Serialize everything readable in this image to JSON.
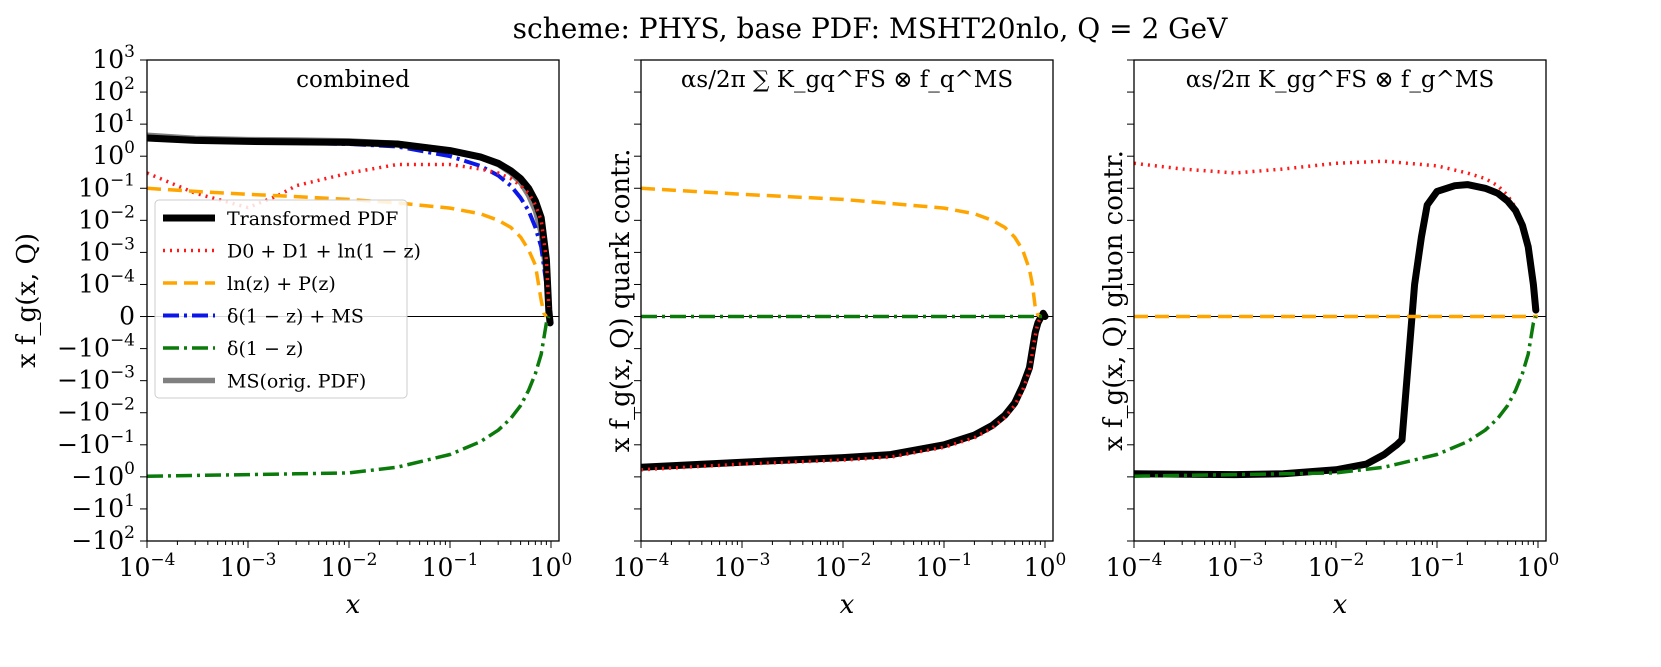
{
  "figure": {
    "title": "scheme: PHYS, base PDF: MSHT20nlo, Q = 2 GeV"
  },
  "styles": {
    "transformed": {
      "color": "#000000",
      "width": 7,
      "dash": ""
    },
    "d0d1": {
      "color": "#ff1a1a",
      "width": 3.5,
      "dash": "2,5"
    },
    "lnzP": {
      "color": "#ffa500",
      "width": 3.5,
      "dash": "14,7"
    },
    "deltaMS": {
      "color": "#0b16e8",
      "width": 4,
      "dash": "16,5,3,5"
    },
    "delta": {
      "color": "#0a7a0a",
      "width": 3.5,
      "dash": "16,5,3,5"
    },
    "orig": {
      "color": "#808080",
      "width": 5.5,
      "dash": ""
    },
    "zero_line": "#000000"
  },
  "chart_data": [
    {
      "type": "line",
      "panel_title": "combined",
      "xlabel": "x",
      "ylabel": "x f_g(x, Q)",
      "xscale": "log",
      "yscale": "symlog",
      "xlim": [
        0.0001,
        1.2
      ],
      "ylim": [
        -100,
        1000
      ],
      "xticks": [
        0.0001,
        0.001,
        0.01,
        0.1,
        1
      ],
      "xtick_labels": [
        "10^-4",
        "10^-3",
        "10^-2",
        "10^-1",
        "10^0"
      ],
      "yticks": [
        1000,
        100,
        10,
        1,
        0.1,
        0.01,
        0.001,
        0.0001,
        0,
        -0.0001,
        -0.001,
        -0.01,
        -0.1,
        -1,
        -10,
        -100
      ],
      "ytick_labels": [
        "10^3",
        "10^2",
        "10^1",
        "10^0",
        "10^-1",
        "10^-2",
        "10^-3",
        "10^-4",
        "0",
        "-10^-4",
        "-10^-3",
        "-10^-2",
        "-10^-1",
        "-10^0",
        "-10^1",
        "-10^2"
      ],
      "legend": {
        "placement": "center-left",
        "entries": [
          {
            "key": "transformed",
            "label": "Transformed PDF"
          },
          {
            "key": "d0d1",
            "label": "D0 + D1 + ln(1 − z)"
          },
          {
            "key": "lnzP",
            "label": "ln(z) + P(z)"
          },
          {
            "key": "deltaMS",
            "label": "δ(1 − z) + MS"
          },
          {
            "key": "delta",
            "label": "δ(1 − z)"
          },
          {
            "key": "orig",
            "label": "MS(orig. PDF)"
          }
        ]
      },
      "series": [
        {
          "key": "orig",
          "x": [
            0.0001,
            0.0003,
            0.001,
            0.003,
            0.01,
            0.03,
            0.1,
            0.2,
            0.3,
            0.4,
            0.5,
            0.6,
            0.7,
            0.8,
            0.9,
            0.95
          ],
          "y": [
            4.5,
            3.6,
            3.3,
            3.2,
            3.0,
            2.5,
            1.5,
            0.9,
            0.55,
            0.3,
            0.15,
            0.06,
            0.02,
            0.004,
            0.0002,
            1e-05
          ]
        },
        {
          "key": "deltaMS",
          "x": [
            0.0001,
            0.0003,
            0.001,
            0.003,
            0.01,
            0.03,
            0.1,
            0.2,
            0.3,
            0.4,
            0.5,
            0.6,
            0.7,
            0.8,
            0.9,
            0.95
          ],
          "y": [
            3.4,
            2.9,
            2.7,
            2.6,
            2.4,
            2.0,
            1.0,
            0.5,
            0.25,
            0.12,
            0.05,
            0.02,
            0.006,
            0.0015,
            0.0001,
            1e-05
          ]
        },
        {
          "key": "transformed",
          "x": [
            0.0001,
            0.0003,
            0.001,
            0.003,
            0.01,
            0.03,
            0.1,
            0.2,
            0.3,
            0.4,
            0.5,
            0.6,
            0.7,
            0.8,
            0.9,
            0.95,
            0.98
          ],
          "y": [
            3.7,
            3.1,
            2.9,
            2.8,
            2.7,
            2.4,
            1.5,
            0.95,
            0.6,
            0.35,
            0.2,
            0.1,
            0.04,
            0.012,
            0.0006,
            2e-05,
            -2e-05
          ]
        },
        {
          "key": "d0d1",
          "x": [
            0.0001,
            0.0003,
            0.001,
            0.002,
            0.003,
            0.01,
            0.03,
            0.1,
            0.2,
            0.3,
            0.4,
            0.5,
            0.6,
            0.7,
            0.8,
            0.9,
            0.95
          ],
          "y": [
            0.3,
            0.07,
            0.025,
            0.06,
            0.12,
            0.3,
            0.55,
            0.55,
            0.4,
            0.3,
            0.2,
            0.12,
            0.07,
            0.03,
            0.01,
            0.0006,
            3e-05
          ]
        },
        {
          "key": "lnzP",
          "x": [
            0.0001,
            0.0003,
            0.001,
            0.003,
            0.01,
            0.03,
            0.1,
            0.2,
            0.3,
            0.4,
            0.5,
            0.6,
            0.7,
            0.8,
            0.85,
            0.9
          ],
          "y": [
            0.1,
            0.08,
            0.065,
            0.055,
            0.045,
            0.035,
            0.024,
            0.016,
            0.01,
            0.006,
            0.003,
            0.0012,
            0.0004,
            5e-05,
            1e-05,
            0
          ]
        },
        {
          "key": "delta",
          "x": [
            0.0001,
            0.001,
            0.003,
            0.01,
            0.03,
            0.1,
            0.2,
            0.3,
            0.4,
            0.5,
            0.6,
            0.7,
            0.8,
            0.9,
            0.95
          ],
          "y": [
            -0.95,
            -0.85,
            -0.8,
            -0.75,
            -0.5,
            -0.2,
            -0.08,
            -0.035,
            -0.015,
            -0.006,
            -0.002,
            -0.0006,
            -0.00015,
            -2e-05,
            0
          ]
        }
      ]
    },
    {
      "type": "line",
      "panel_title": "αs/2π ∑ K_gq^FS ⊗ f_q^MS",
      "xlabel": "x",
      "ylabel": "x f_g(x, Q)  quark contr.",
      "xscale": "log",
      "yscale": "symlog",
      "xlim": [
        0.0001,
        1.2
      ],
      "ylim": [
        -100,
        1000
      ],
      "xticks": [
        0.0001,
        0.001,
        0.01,
        0.1,
        1
      ],
      "xtick_labels": [
        "10^-4",
        "10^-3",
        "10^-2",
        "10^-1",
        "10^0"
      ],
      "series": [
        {
          "key": "transformed",
          "x": [
            0.0001,
            0.001,
            0.01,
            0.03,
            0.1,
            0.2,
            0.3,
            0.4,
            0.5,
            0.6,
            0.7,
            0.8,
            0.85,
            0.9,
            0.93,
            0.96,
            1.0
          ],
          "y": [
            -0.5,
            -0.35,
            -0.25,
            -0.2,
            -0.1,
            -0.05,
            -0.025,
            -0.012,
            -0.005,
            -0.0015,
            -0.0004,
            -5e-05,
            -2e-05,
            -5e-06,
            0,
            1e-05,
            0
          ]
        },
        {
          "key": "d0d1",
          "x": [
            0.0001,
            0.001,
            0.01,
            0.03,
            0.1,
            0.2,
            0.3,
            0.4,
            0.5,
            0.6,
            0.7,
            0.8,
            0.85,
            0.9,
            0.93
          ],
          "y": [
            -0.6,
            -0.4,
            -0.3,
            -0.24,
            -0.12,
            -0.06,
            -0.03,
            -0.014,
            -0.006,
            -0.002,
            -0.0005,
            -6e-05,
            -2e-05,
            -5e-06,
            0
          ]
        },
        {
          "key": "lnzP",
          "x": [
            0.0001,
            0.001,
            0.01,
            0.1,
            0.2,
            0.3,
            0.4,
            0.5,
            0.6,
            0.7,
            0.75,
            0.8,
            0.85,
            0.9
          ],
          "y": [
            0.1,
            0.065,
            0.045,
            0.024,
            0.016,
            0.01,
            0.006,
            0.003,
            0.0012,
            0.0003,
            0.0001,
            3e-05,
            5e-06,
            0
          ]
        },
        {
          "key": "delta",
          "x": [
            0.0001,
            1.0
          ],
          "y": [
            0,
            0
          ]
        }
      ]
    },
    {
      "type": "line",
      "panel_title": "αs/2π K_gg^FS ⊗ f_g^MS",
      "xlabel": "x",
      "ylabel": "x f_g(x, Q)  gluon contr.",
      "xscale": "log",
      "yscale": "symlog",
      "xlim": [
        0.0001,
        1.2
      ],
      "ylim": [
        -100,
        1000
      ],
      "xticks": [
        0.0001,
        0.001,
        0.01,
        0.1,
        1
      ],
      "xtick_labels": [
        "10^-4",
        "10^-3",
        "10^-2",
        "10^-1",
        "10^0"
      ],
      "series": [
        {
          "key": "d0d1",
          "x": [
            0.0001,
            0.0003,
            0.001,
            0.003,
            0.01,
            0.03,
            0.1,
            0.2,
            0.3,
            0.4,
            0.5,
            0.6,
            0.7,
            0.8,
            0.9,
            0.95
          ],
          "y": [
            0.6,
            0.4,
            0.3,
            0.4,
            0.6,
            0.7,
            0.5,
            0.3,
            0.2,
            0.12,
            0.06,
            0.025,
            0.008,
            0.0015,
            0.0001,
            2e-05
          ]
        },
        {
          "key": "transformed",
          "x": [
            0.0001,
            0.001,
            0.003,
            0.01,
            0.02,
            0.03,
            0.04,
            0.045,
            0.06,
            0.07,
            0.08,
            0.1,
            0.15,
            0.2,
            0.3,
            0.4,
            0.5,
            0.6,
            0.7,
            0.8,
            0.9,
            0.95
          ],
          "y": [
            -0.8,
            -0.85,
            -0.8,
            -0.6,
            -0.4,
            -0.2,
            -0.1,
            -0.07,
            0.0001,
            0.003,
            0.03,
            0.08,
            0.12,
            0.13,
            0.1,
            0.07,
            0.04,
            0.02,
            0.007,
            0.0015,
            0.0001,
            2e-05
          ]
        },
        {
          "key": "lnzP",
          "x": [
            0.0001,
            1.0
          ],
          "y": [
            0,
            0
          ]
        },
        {
          "key": "delta",
          "x": [
            0.0001,
            0.001,
            0.003,
            0.01,
            0.03,
            0.1,
            0.2,
            0.3,
            0.4,
            0.5,
            0.6,
            0.7,
            0.8,
            0.9,
            0.95
          ],
          "y": [
            -0.95,
            -0.85,
            -0.8,
            -0.75,
            -0.5,
            -0.2,
            -0.08,
            -0.035,
            -0.015,
            -0.006,
            -0.002,
            -0.0006,
            -0.00015,
            -2e-05,
            0
          ]
        }
      ]
    }
  ]
}
